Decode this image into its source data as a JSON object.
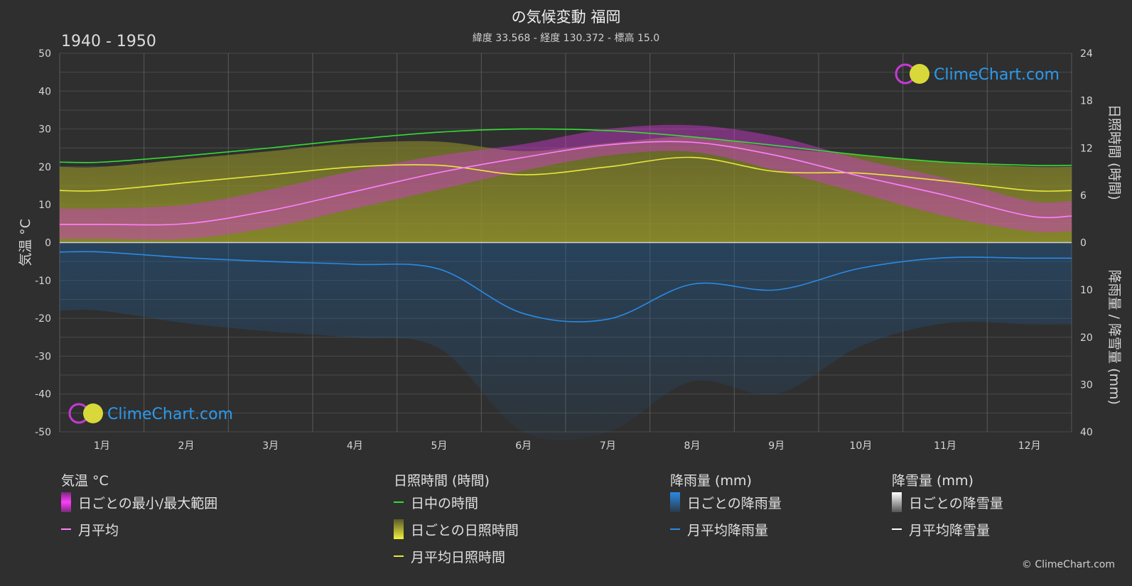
{
  "header": {
    "title": "の気候変動 福岡",
    "subtitle": "緯度 33.568 - 経度 130.372 - 標高 15.0",
    "period": "1940 - 1950"
  },
  "watermark": {
    "text": "ClimeChart.com"
  },
  "copyright": "© ClimeChart.com",
  "colors": {
    "background": "#2f2f2f",
    "grid": "#555555",
    "daylight": "#33dd33",
    "sunshine_line": "#e8e83c",
    "sunshine_fill": "#8c8c2c",
    "temp_range": "#d43ad4",
    "temp_line": "#ff80ff",
    "rain_line": "#2a8ae6",
    "rain_fill": "#1e5e9a",
    "snow": "#ffffff",
    "brand": "#2a9bf0"
  },
  "chart_data": {
    "type": "line",
    "months": [
      "1月",
      "2月",
      "3月",
      "4月",
      "5月",
      "6月",
      "7月",
      "8月",
      "9月",
      "10月",
      "11月",
      "12月"
    ],
    "left_axis": {
      "label": "気温 °C",
      "min": -50,
      "max": 50,
      "ticks": [
        "50",
        "40",
        "30",
        "20",
        "10",
        "0",
        "-10",
        "-20",
        "-30",
        "-40",
        "-50"
      ]
    },
    "right_axis_top": {
      "label": "日照時間 (時間)",
      "min": 0,
      "max": 24,
      "ticks": [
        "24",
        "18",
        "12",
        "6",
        "0"
      ]
    },
    "right_axis_bottom": {
      "label": "降雨量 / 降雪量 (mm)",
      "min": 0,
      "max": 40,
      "ticks": [
        "0",
        "10",
        "20",
        "30",
        "40"
      ]
    },
    "series": [
      {
        "name": "日中の時間",
        "unit": "時間",
        "values": [
          10.2,
          11.0,
          12.0,
          13.1,
          14.0,
          14.4,
          14.2,
          13.4,
          12.3,
          11.1,
          10.2,
          9.8
        ]
      },
      {
        "name": "月平均日照時間",
        "unit": "時間",
        "values": [
          6.6,
          7.6,
          8.6,
          9.6,
          9.8,
          8.6,
          9.6,
          10.8,
          9.0,
          8.8,
          7.8,
          6.6
        ]
      },
      {
        "name": "月平均",
        "unit": "°C",
        "values": [
          4.8,
          5.0,
          8.5,
          13.5,
          18.5,
          22.5,
          25.8,
          26.5,
          23.0,
          17.5,
          12.5,
          7.0
        ]
      },
      {
        "name": "日ごとの最小/最大範囲",
        "unit": "°C",
        "min": [
          1,
          1,
          4,
          9,
          14,
          19,
          23,
          24,
          19,
          13,
          7,
          3
        ],
        "max": [
          9,
          10,
          14,
          19,
          23,
          26,
          30,
          31,
          28,
          22,
          17,
          11
        ]
      },
      {
        "name": "月平均降雨量",
        "unit": "mm",
        "values": [
          2.0,
          3.2,
          4.0,
          4.6,
          5.6,
          15.0,
          16.2,
          8.8,
          10.0,
          5.4,
          3.2,
          3.3
        ]
      },
      {
        "name": "月平均降雪量",
        "unit": "mm",
        "values": [
          0.4,
          0.3,
          0.1,
          0,
          0,
          0,
          0,
          0,
          0,
          0,
          0,
          0.2
        ]
      }
    ]
  },
  "legend": {
    "temp": {
      "title": "気温 °C",
      "range": "日ごとの最小/最大範囲",
      "avg": "月平均"
    },
    "sun": {
      "title": "日照時間 (時間)",
      "daylight": "日中の時間",
      "daily": "日ごとの日照時間",
      "avg": "月平均日照時間"
    },
    "rain": {
      "title": "降雨量 (mm)",
      "daily": "日ごとの降雨量",
      "avg": "月平均降雨量"
    },
    "snow": {
      "title": "降雪量 (mm)",
      "daily": "日ごとの降雪量",
      "avg": "月平均降雪量"
    }
  }
}
